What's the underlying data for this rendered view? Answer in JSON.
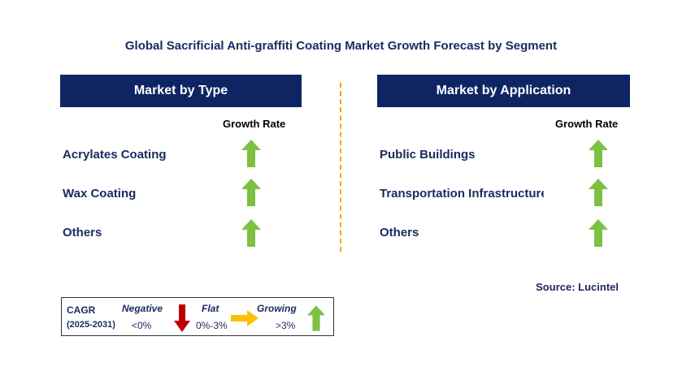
{
  "title": "Global Sacrificial Anti-graffiti Coating Market Growth Forecast by Segment",
  "left_panel": {
    "header": "Market by Type",
    "growth_rate_label": "Growth Rate",
    "rows": [
      {
        "label": "Acrylates Coating",
        "trend": "growing"
      },
      {
        "label": "Wax Coating",
        "trend": "growing"
      },
      {
        "label": "Others",
        "trend": "growing"
      }
    ]
  },
  "right_panel": {
    "header": "Market by Application",
    "growth_rate_label": "Growth Rate",
    "rows": [
      {
        "label": "Public Buildings",
        "trend": "growing"
      },
      {
        "label": "Transportation Infrastructure",
        "trend": "growing"
      },
      {
        "label": "Others",
        "trend": "growing"
      }
    ]
  },
  "source": "Source: Lucintel",
  "legend": {
    "cagr_label": "CAGR",
    "period": "(2025-2031)",
    "negative": {
      "label": "Negative",
      "range": "<0%",
      "icon": "red-down-arrow-icon"
    },
    "flat": {
      "label": "Flat",
      "range": "0%-3%",
      "icon": "orange-right-arrow-icon"
    },
    "growing": {
      "label": "Growing",
      "range": ">3%",
      "icon": "green-up-arrow-icon"
    }
  },
  "colors": {
    "header_bg": "#0f2563",
    "text": "#1b2a5e",
    "growing": "#7cc142",
    "negative": "#c00000",
    "flat": "#ffc000",
    "divider": "#f0a500"
  }
}
